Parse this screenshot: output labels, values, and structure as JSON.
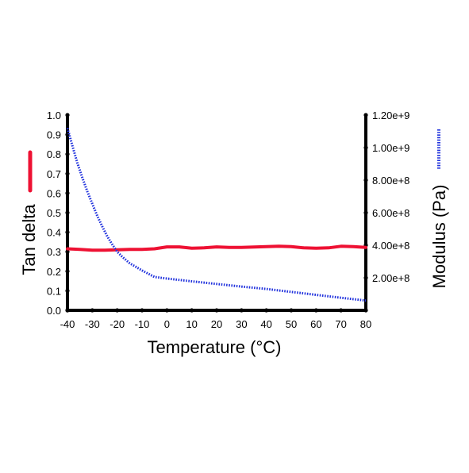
{
  "chart_data": {
    "type": "line",
    "title": "",
    "xlabel": "Temperature (°C)",
    "ylabel_left": "Tan delta",
    "ylabel_right": "Modulus (Pa)",
    "xlim": [
      -40,
      80
    ],
    "ylim_left": [
      0.0,
      1.0
    ],
    "ylim_right": [
      0,
      1200000000
    ],
    "grid": false,
    "legend": "axis-labels-colored",
    "x_ticks": [
      "-40",
      "-30",
      "-20",
      "-10",
      "0",
      "10",
      "20",
      "30",
      "40",
      "50",
      "60",
      "70",
      "80"
    ],
    "x_tick_values": [
      -40,
      -30,
      -20,
      -10,
      0,
      10,
      20,
      30,
      40,
      50,
      60,
      70,
      80
    ],
    "y_left_ticks": [
      "0.0",
      "0.1",
      "0.2",
      "0.3",
      "0.4",
      "0.5",
      "0.6",
      "0.7",
      "0.8",
      "0.9",
      "1.0"
    ],
    "y_left_tick_values": [
      0.0,
      0.1,
      0.2,
      0.3,
      0.4,
      0.5,
      0.6,
      0.7,
      0.8,
      0.9,
      1.0
    ],
    "y_right_ticks": [
      "2.00e+8",
      "4.00e+8",
      "6.00e+8",
      "8.00e+8",
      "1.00e+9",
      "1.20e+9"
    ],
    "y_right_tick_values": [
      200000000,
      400000000,
      600000000,
      800000000,
      1000000000,
      1200000000
    ],
    "series": [
      {
        "name": "Tan delta",
        "axis": "left",
        "color": "#ee1133",
        "style": "solid",
        "x": [
          -40,
          -35,
          -30,
          -25,
          -20,
          -15,
          -10,
          -5,
          0,
          5,
          10,
          15,
          20,
          25,
          30,
          35,
          40,
          45,
          50,
          55,
          60,
          65,
          70,
          75,
          80
        ],
        "y": [
          0.315,
          0.312,
          0.308,
          0.308,
          0.31,
          0.312,
          0.312,
          0.315,
          0.325,
          0.325,
          0.318,
          0.32,
          0.325,
          0.322,
          0.322,
          0.324,
          0.326,
          0.328,
          0.326,
          0.32,
          0.318,
          0.32,
          0.328,
          0.326,
          0.322
        ]
      },
      {
        "name": "Modulus (Pa)",
        "axis": "right",
        "color": "#2233dd",
        "style": "dotted",
        "x": [
          -40,
          -38,
          -36,
          -34,
          -32,
          -30,
          -28,
          -26,
          -24,
          -22,
          -20,
          -18,
          -15,
          -10,
          -5,
          0,
          5,
          10,
          20,
          30,
          40,
          50,
          60,
          70,
          80
        ],
        "y": [
          1120000000,
          1010000000,
          905000000,
          815000000,
          730000000,
          655000000,
          580000000,
          515000000,
          455000000,
          405000000,
          360000000,
          330000000,
          290000000,
          245000000,
          205000000,
          195000000,
          187000000,
          178000000,
          162000000,
          146000000,
          131000000,
          113000000,
          95000000,
          77000000,
          60000000
        ]
      }
    ]
  }
}
